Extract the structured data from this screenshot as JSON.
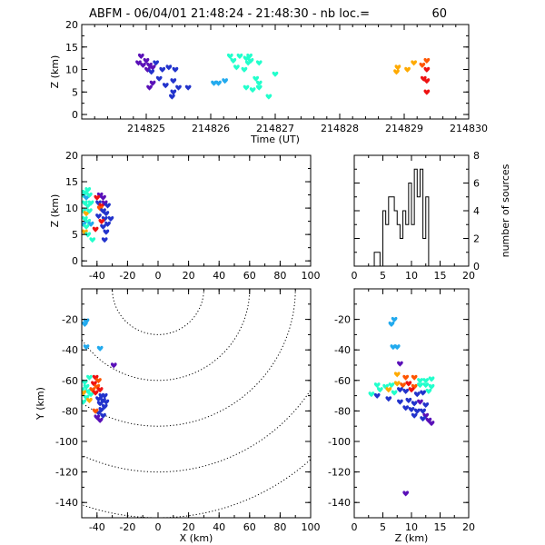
{
  "title": "ABFM - 06/04/01 21:48:24 - 21:48:30 - nb loc.=",
  "nb_loc": "60",
  "colors": {
    "c1": "#5a10b8",
    "c2": "#2233cc",
    "c3": "#22aaee",
    "c4": "#22ffcc",
    "c5": "#ffaa00",
    "c6": "#ff5500",
    "c7": "#ee1111"
  },
  "chart_data": [
    {
      "id": "time_height",
      "type": "scatter",
      "xlabel": "Time (UT)",
      "ylabel": "Z (km)",
      "xlim": [
        214824.0,
        214830.0
      ],
      "ylim": [
        -1,
        20
      ],
      "xticks": [
        214825,
        214826,
        214827,
        214828,
        214829,
        214830
      ],
      "yticks": [
        0,
        5,
        10,
        15,
        20
      ],
      "points": [
        [
          214824.92,
          13.0,
          "c1"
        ],
        [
          214825.0,
          12.0,
          "c1"
        ],
        [
          214824.95,
          11.0,
          "c1"
        ],
        [
          214825.05,
          11.0,
          "c1"
        ],
        [
          214824.88,
          11.5,
          "c1"
        ],
        [
          214825.02,
          10.0,
          "c1"
        ],
        [
          214825.1,
          10.5,
          "c1"
        ],
        [
          214825.15,
          11.5,
          "c2"
        ],
        [
          214825.08,
          9.5,
          "c2"
        ],
        [
          214825.25,
          10.0,
          "c2"
        ],
        [
          214825.35,
          10.5,
          "c2"
        ],
        [
          214825.45,
          10.0,
          "c2"
        ],
        [
          214825.2,
          8.0,
          "c2"
        ],
        [
          214825.1,
          7.0,
          "c1"
        ],
        [
          214825.42,
          7.5,
          "c2"
        ],
        [
          214825.05,
          6.0,
          "c1"
        ],
        [
          214825.3,
          6.5,
          "c2"
        ],
        [
          214825.5,
          6.0,
          "c2"
        ],
        [
          214825.42,
          5.0,
          "c2"
        ],
        [
          214825.65,
          6.0,
          "c2"
        ],
        [
          214825.4,
          4.0,
          "c2"
        ],
        [
          214826.05,
          7.0,
          "c3"
        ],
        [
          214826.12,
          7.0,
          "c3"
        ],
        [
          214826.22,
          7.5,
          "c3"
        ],
        [
          214826.3,
          13.0,
          "c4"
        ],
        [
          214826.45,
          13.0,
          "c4"
        ],
        [
          214826.35,
          12.0,
          "c4"
        ],
        [
          214826.55,
          12.5,
          "c4"
        ],
        [
          214826.6,
          13.0,
          "c4"
        ],
        [
          214826.62,
          12.0,
          "c4"
        ],
        [
          214826.58,
          11.5,
          "c4"
        ],
        [
          214826.75,
          11.5,
          "c4"
        ],
        [
          214826.4,
          10.5,
          "c4"
        ],
        [
          214826.52,
          10.0,
          "c4"
        ],
        [
          214827.0,
          9.0,
          "c4"
        ],
        [
          214826.7,
          8.0,
          "c4"
        ],
        [
          214826.75,
          7.0,
          "c4"
        ],
        [
          214826.75,
          6.0,
          "c4"
        ],
        [
          214826.65,
          5.5,
          "c4"
        ],
        [
          214826.55,
          6.0,
          "c4"
        ],
        [
          214826.9,
          4.0,
          "c4"
        ],
        [
          214828.9,
          10.5,
          "c5"
        ],
        [
          214828.88,
          9.5,
          "c5"
        ],
        [
          214829.05,
          10.0,
          "c5"
        ],
        [
          214829.15,
          11.5,
          "c5"
        ],
        [
          214829.28,
          11.0,
          "c6"
        ],
        [
          214829.35,
          12.0,
          "c6"
        ],
        [
          214829.35,
          10.0,
          "c7"
        ],
        [
          214829.3,
          8.0,
          "c7"
        ],
        [
          214829.35,
          7.5,
          "c7"
        ],
        [
          214829.35,
          5.0,
          "c7"
        ]
      ]
    },
    {
      "id": "x_height",
      "type": "scatter",
      "xlabel": "",
      "ylabel": "Z (km)",
      "xlim": [
        -50,
        100
      ],
      "ylim": [
        -1,
        20
      ],
      "xticks": [
        -40,
        -20,
        0,
        20,
        40,
        60,
        80,
        100
      ],
      "yticks": [
        0,
        5,
        10,
        15,
        20
      ],
      "points": [
        [
          -48,
          13.0,
          "c4"
        ],
        [
          -46,
          13.5,
          "c4"
        ],
        [
          -49,
          12.5,
          "c4"
        ],
        [
          -47,
          12.0,
          "c3"
        ],
        [
          -45,
          12.5,
          "c4"
        ],
        [
          -48,
          11.0,
          "c4"
        ],
        [
          -46,
          10.5,
          "c4"
        ],
        [
          -44,
          11.0,
          "c4"
        ],
        [
          -49,
          9.5,
          "c4"
        ],
        [
          -47,
          9.0,
          "c5"
        ],
        [
          -45,
          9.5,
          "c4"
        ],
        [
          -48,
          8.0,
          "c4"
        ],
        [
          -46,
          7.5,
          "c4"
        ],
        [
          -49,
          7.0,
          "c3"
        ],
        [
          -44,
          7.0,
          "c3"
        ],
        [
          -47,
          6.5,
          "c4"
        ],
        [
          -48,
          5.5,
          "c5"
        ],
        [
          -46,
          5.0,
          "c4"
        ],
        [
          -43,
          4.0,
          "c4"
        ],
        [
          -41,
          6.0,
          "c7"
        ],
        [
          -38,
          12.5,
          "c1"
        ],
        [
          -36,
          12.0,
          "c1"
        ],
        [
          -39,
          11.0,
          "c2"
        ],
        [
          -37,
          10.5,
          "c7"
        ],
        [
          -35,
          11.0,
          "c1"
        ],
        [
          -33,
          10.5,
          "c2"
        ],
        [
          -38,
          10.0,
          "c6"
        ],
        [
          -36,
          9.5,
          "c2"
        ],
        [
          -34,
          9.0,
          "c2"
        ],
        [
          -39,
          8.5,
          "c2"
        ],
        [
          -35,
          8.0,
          "c2"
        ],
        [
          -37,
          7.5,
          "c7"
        ],
        [
          -33,
          7.0,
          "c2"
        ],
        [
          -36,
          6.5,
          "c2"
        ],
        [
          -34,
          5.5,
          "c2"
        ],
        [
          -31,
          8.0,
          "c2"
        ],
        [
          -35,
          4.0,
          "c2"
        ],
        [
          -40,
          12.0,
          "c7"
        ]
      ]
    },
    {
      "id": "height_histogram",
      "type": "bar",
      "xlabel": "",
      "ylabel": "number of sources",
      "xlim": [
        0,
        20
      ],
      "ylim": [
        0,
        8
      ],
      "xticks": [
        0,
        5,
        10,
        15,
        20
      ],
      "yticks": [
        0,
        2,
        4,
        6,
        8
      ],
      "bin_width": 0.5,
      "bins": [
        [
          0,
          0
        ],
        [
          0.5,
          0
        ],
        [
          1,
          0
        ],
        [
          1.5,
          0
        ],
        [
          2,
          0
        ],
        [
          2.5,
          0
        ],
        [
          3,
          0
        ],
        [
          3.5,
          1
        ],
        [
          4,
          1
        ],
        [
          4.5,
          0
        ],
        [
          5,
          4
        ],
        [
          5.5,
          3
        ],
        [
          6,
          5
        ],
        [
          6.5,
          5
        ],
        [
          7,
          4
        ],
        [
          7.5,
          3
        ],
        [
          8,
          2
        ],
        [
          8.5,
          4
        ],
        [
          9,
          3
        ],
        [
          9.5,
          6
        ],
        [
          10,
          3
        ],
        [
          10.5,
          7
        ],
        [
          11,
          5
        ],
        [
          11.5,
          7
        ],
        [
          12,
          2
        ],
        [
          12.5,
          5
        ],
        [
          13,
          0
        ],
        [
          13.5,
          0
        ],
        [
          14,
          0
        ],
        [
          14.5,
          0
        ],
        [
          15,
          0
        ],
        [
          15.5,
          0
        ],
        [
          16,
          0
        ],
        [
          16.5,
          0
        ],
        [
          17,
          0
        ],
        [
          17.5,
          0
        ],
        [
          18,
          0
        ],
        [
          18.5,
          0
        ],
        [
          19,
          0
        ],
        [
          19.5,
          0
        ]
      ]
    },
    {
      "id": "plan_view",
      "type": "scatter",
      "xlabel": "X (km)",
      "ylabel": "Y (km)",
      "xlim": [
        -50,
        100
      ],
      "ylim": [
        -150,
        0
      ],
      "xticks": [
        -40,
        -20,
        0,
        20,
        40,
        60,
        80,
        100
      ],
      "yticks": [
        -140,
        -120,
        -100,
        -80,
        -60,
        -40,
        -20
      ],
      "rings_center": [
        0,
        0
      ],
      "rings_radii": [
        30,
        60,
        90,
        120,
        150
      ],
      "points": [
        [
          -47,
          -21,
          "c3"
        ],
        [
          -48,
          -23,
          "c3"
        ],
        [
          -47,
          -38,
          "c3"
        ],
        [
          -38,
          -39,
          "c3"
        ],
        [
          -29,
          -50,
          "c1"
        ],
        [
          -45,
          -58,
          "c4"
        ],
        [
          -48,
          -61,
          "c4"
        ],
        [
          -47,
          -64,
          "c4"
        ],
        [
          -50,
          -66,
          "c4"
        ],
        [
          -46,
          -67,
          "c4"
        ],
        [
          -49,
          -68,
          "c5"
        ],
        [
          -44,
          -69,
          "c4"
        ],
        [
          -47,
          -71,
          "c4"
        ],
        [
          -45,
          -73,
          "c5"
        ],
        [
          -49,
          -74,
          "c4"
        ],
        [
          -41,
          -58,
          "c7"
        ],
        [
          -39,
          -60,
          "c6"
        ],
        [
          -42,
          -62,
          "c7"
        ],
        [
          -40,
          -64,
          "c6"
        ],
        [
          -43,
          -66,
          "c6"
        ],
        [
          -38,
          -66,
          "c7"
        ],
        [
          -41,
          -68,
          "c7"
        ],
        [
          -37,
          -70,
          "c2"
        ],
        [
          -35,
          -70,
          "c2"
        ],
        [
          -39,
          -72,
          "c2"
        ],
        [
          -36,
          -73,
          "c2"
        ],
        [
          -34,
          -74,
          "c2"
        ],
        [
          -38,
          -75,
          "c2"
        ],
        [
          -35,
          -77,
          "c2"
        ],
        [
          -37,
          -79,
          "c2"
        ],
        [
          -39,
          -81,
          "c2"
        ],
        [
          -36,
          -83,
          "c2"
        ],
        [
          -40,
          -84,
          "c1"
        ],
        [
          -38,
          -86,
          "c1"
        ],
        [
          -41,
          -80,
          "c6"
        ]
      ]
    },
    {
      "id": "height_y",
      "type": "scatter",
      "xlabel": "Z (km)",
      "ylabel": "",
      "xlim": [
        0,
        20
      ],
      "ylim": [
        -150,
        0
      ],
      "xticks": [
        0,
        5,
        10,
        15,
        20
      ],
      "yticks": [
        -140,
        -120,
        -100,
        -80,
        -60,
        -40,
        -20
      ],
      "points": [
        [
          7,
          -20,
          "c3"
        ],
        [
          6.5,
          -23,
          "c3"
        ],
        [
          6.8,
          -38,
          "c3"
        ],
        [
          7.5,
          -38,
          "c3"
        ],
        [
          8,
          -49,
          "c1"
        ],
        [
          7.5,
          -56,
          "c5"
        ],
        [
          9,
          -58,
          "c6"
        ],
        [
          10.5,
          -58,
          "c6"
        ],
        [
          11.5,
          -60,
          "c4"
        ],
        [
          12.5,
          -60,
          "c4"
        ],
        [
          13.5,
          -59,
          "c4"
        ],
        [
          4,
          -63,
          "c4"
        ],
        [
          4.5,
          -66,
          "c4"
        ],
        [
          5.5,
          -64,
          "c4"
        ],
        [
          6.5,
          -63,
          "c4"
        ],
        [
          7.5,
          -62,
          "c5"
        ],
        [
          8.5,
          -63,
          "c6"
        ],
        [
          9.5,
          -62,
          "c7"
        ],
        [
          10.5,
          -64,
          "c6"
        ],
        [
          11.5,
          -63,
          "c4"
        ],
        [
          12.5,
          -63,
          "c4"
        ],
        [
          13.5,
          -64,
          "c4"
        ],
        [
          6,
          -66,
          "c5"
        ],
        [
          7,
          -68,
          "c4"
        ],
        [
          8,
          -66,
          "c2"
        ],
        [
          9,
          -67,
          "c2"
        ],
        [
          10,
          -66,
          "c7"
        ],
        [
          11,
          -69,
          "c2"
        ],
        [
          12,
          -68,
          "c2"
        ],
        [
          13,
          -67,
          "c4"
        ],
        [
          3,
          -69,
          "c4"
        ],
        [
          4,
          -70,
          "c2"
        ],
        [
          6,
          -72,
          "c2"
        ],
        [
          8,
          -74,
          "c2"
        ],
        [
          9.5,
          -73,
          "c2"
        ],
        [
          10.5,
          -75,
          "c2"
        ],
        [
          11.5,
          -74,
          "c1"
        ],
        [
          12.5,
          -76,
          "c2"
        ],
        [
          9,
          -78,
          "c2"
        ],
        [
          10,
          -79,
          "c2"
        ],
        [
          11,
          -80,
          "c2"
        ],
        [
          12,
          -80,
          "c2"
        ],
        [
          10.5,
          -83,
          "c2"
        ],
        [
          12.5,
          -83,
          "c1"
        ],
        [
          13,
          -86,
          "c1"
        ],
        [
          13.5,
          -88,
          "c1"
        ],
        [
          12,
          -85,
          "c2"
        ],
        [
          9,
          -134,
          "c1"
        ]
      ]
    }
  ]
}
